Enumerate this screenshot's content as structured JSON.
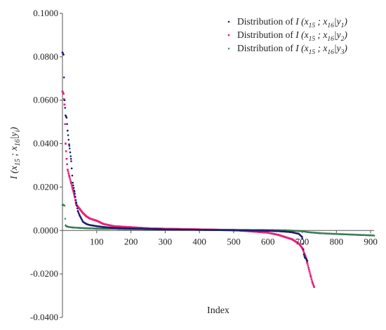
{
  "chart_data": {
    "type": "scatter",
    "xlabel": "Index",
    "ylabel": "I (x15 ; x16|yi)",
    "xlim": [
      0,
      910
    ],
    "ylim": [
      -0.04,
      0.1
    ],
    "x_ticks": [
      100,
      200,
      300,
      400,
      500,
      600,
      700,
      800,
      900
    ],
    "x_tick_labels": [
      "100",
      "200",
      "300",
      "400",
      "500",
      "600",
      "700",
      "800",
      "900"
    ],
    "y_ticks": [
      -0.04,
      -0.02,
      0.0,
      0.02,
      0.04,
      0.06,
      0.08,
      0.1
    ],
    "y_tick_labels": [
      "-0.0400",
      "-0.0200",
      "0.0000",
      "0.0200",
      "0.0400",
      "0.0600",
      "0.0800",
      "0.1000"
    ],
    "grid": false,
    "legend_position": "top-right",
    "series": [
      {
        "name": "Distribution of I (x15 ; x16|y1)",
        "legend_prefix": "Distribution of",
        "legend_math": {
          "base": "I (x",
          "s1": "15",
          "mid": " ; x",
          "s2": "16",
          "cond": "|y",
          "s3": "1",
          "end": ")"
        },
        "color": "#1f1f6b",
        "marker": "circle",
        "n_points": 715,
        "x": [
          0,
          3,
          6,
          9,
          12,
          15,
          20,
          25,
          30,
          35,
          40,
          45,
          50,
          60,
          70,
          80,
          100,
          120,
          150,
          200,
          250,
          300,
          400,
          500,
          550,
          600,
          630,
          650,
          670,
          690,
          700,
          705,
          708,
          712,
          715
        ],
        "values": [
          0.082,
          0.081,
          0.06,
          0.053,
          0.052,
          0.046,
          0.039,
          0.033,
          0.022,
          0.018,
          0.013,
          0.009,
          0.007,
          0.004,
          0.003,
          0.0025,
          0.002,
          0.0016,
          0.0012,
          0.0009,
          0.0007,
          0.0005,
          0.0003,
          0.0001,
          0.0,
          -0.0001,
          -0.0003,
          -0.0005,
          -0.0008,
          -0.0015,
          -0.003,
          -0.011,
          -0.0125,
          -0.013,
          -0.014
        ]
      },
      {
        "name": "Distribution of I (x15 ; x16|y2)",
        "legend_prefix": "Distribution of",
        "legend_math": {
          "base": "I (x",
          "s1": "15",
          "mid": " ; x",
          "s2": "16",
          "cond": "|y",
          "s3": "2",
          "end": ")"
        },
        "color": "#e8247c",
        "marker": "square",
        "n_points": 735,
        "x": [
          0,
          3,
          6,
          9,
          12,
          15,
          20,
          25,
          30,
          35,
          40,
          50,
          60,
          70,
          80,
          90,
          100,
          120,
          150,
          200,
          250,
          300,
          400,
          500,
          600,
          630,
          650,
          670,
          690,
          700,
          710,
          715,
          720,
          725,
          730,
          735
        ],
        "values": [
          0.064,
          0.063,
          0.058,
          0.04,
          0.033,
          0.028,
          0.025,
          0.022,
          0.019,
          0.016,
          0.012,
          0.01,
          0.008,
          0.0065,
          0.0055,
          0.005,
          0.0045,
          0.003,
          0.002,
          0.0015,
          0.001,
          0.0008,
          0.0005,
          0.0002,
          -0.001,
          -0.002,
          -0.003,
          -0.004,
          -0.006,
          -0.008,
          -0.012,
          -0.015,
          -0.018,
          -0.021,
          -0.024,
          -0.026
        ]
      },
      {
        "name": "Distribution of I (x15 ; x16|y3)",
        "legend_prefix": "Distribution of",
        "legend_math": {
          "base": "I (x",
          "s1": "15",
          "mid": " ; x",
          "s2": "16",
          "cond": "|y",
          "s3": "3",
          "end": ")"
        },
        "color": "#3a7a55",
        "marker": "triangle",
        "n_points": 910,
        "x": [
          0,
          3,
          6,
          9,
          12,
          15,
          20,
          30,
          50,
          80,
          100,
          150,
          200,
          300,
          400,
          500,
          600,
          650,
          700,
          720,
          750,
          800,
          850,
          880,
          900,
          910
        ],
        "values": [
          0.012,
          0.0118,
          0.0115,
          0.0025,
          0.002,
          0.0018,
          0.0016,
          0.0014,
          0.0012,
          0.001,
          0.0009,
          0.0008,
          0.0007,
          0.0005,
          0.0004,
          0.0003,
          0.0002,
          0.0001,
          -0.0003,
          -0.0008,
          -0.0012,
          -0.0016,
          -0.0019,
          -0.0021,
          -0.0022,
          -0.0023
        ]
      }
    ]
  }
}
